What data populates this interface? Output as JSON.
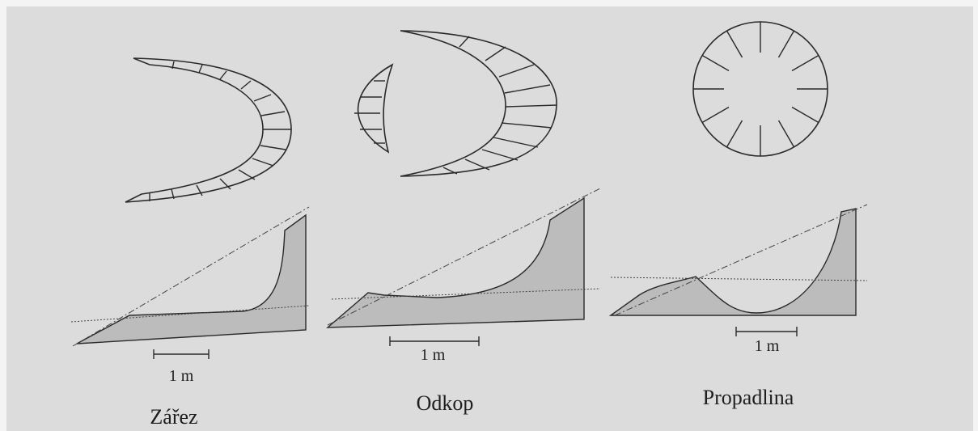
{
  "panels": [
    {
      "label": "Zářez",
      "scale": "1 m"
    },
    {
      "label": "Odkop",
      "scale": "1 m"
    },
    {
      "label": "Propadlina",
      "scale": "1 m"
    }
  ]
}
